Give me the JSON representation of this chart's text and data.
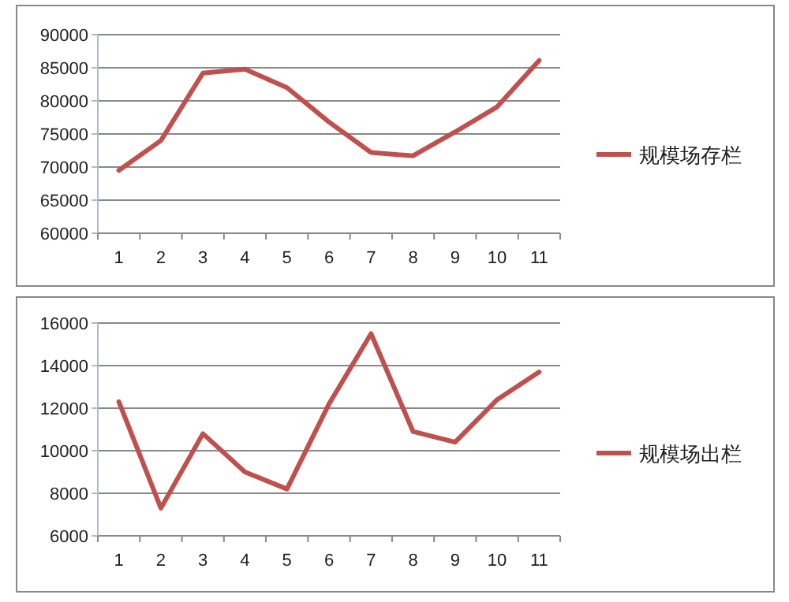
{
  "chart_data": [
    {
      "type": "line",
      "categories": [
        "1",
        "2",
        "3",
        "4",
        "5",
        "6",
        "7",
        "8",
        "9",
        "10",
        "11"
      ],
      "ylim": [
        60000,
        90000
      ],
      "yticks": [
        60000,
        65000,
        70000,
        75000,
        80000,
        85000,
        90000
      ],
      "grid": "y",
      "legend": "right",
      "marker": "none",
      "series": [
        {
          "name": "规模场存栏",
          "color": "#c0504d",
          "values": [
            69500,
            74000,
            84200,
            84800,
            82000,
            76800,
            72200,
            71700,
            75300,
            79100,
            86100
          ]
        }
      ]
    },
    {
      "type": "line",
      "categories": [
        "1",
        "2",
        "3",
        "4",
        "5",
        "6",
        "7",
        "8",
        "9",
        "10",
        "11"
      ],
      "ylim": [
        6000,
        16000
      ],
      "yticks": [
        6000,
        8000,
        10000,
        12000,
        14000,
        16000
      ],
      "grid": "y",
      "legend": "right",
      "marker": "none",
      "series": [
        {
          "name": "规模场出栏",
          "color": "#c0504d",
          "values": [
            12300,
            7300,
            10800,
            9000,
            8200,
            12200,
            15500,
            10900,
            10400,
            12400,
            13700
          ]
        }
      ]
    }
  ]
}
